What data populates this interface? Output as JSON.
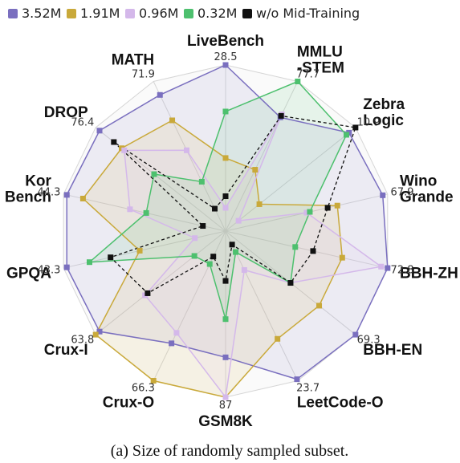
{
  "chart_data": {
    "type": "radar",
    "caption": "(a) Size of randomly sampled subset.",
    "axes": [
      "LiveBench",
      "MMLU-STEM",
      "Zebra Logic",
      "Wino Grande",
      "BBH-ZH",
      "BBH-EN",
      "LeetCode-O",
      "GSM8K",
      "Crux-O",
      "Crux-I",
      "GPQA",
      "Kor Bench",
      "DROP",
      "MATH"
    ],
    "axis_label_lines": [
      [
        "LiveBench"
      ],
      [
        "MMLU",
        "-STEM"
      ],
      [
        "Zebra",
        "Logic"
      ],
      [
        "Wino",
        "Grande"
      ],
      [
        "BBH-ZH"
      ],
      [
        "BBH-EN"
      ],
      [
        "LeetCode-O"
      ],
      [
        "GSM8K"
      ],
      [
        "Crux-O"
      ],
      [
        "Crux-I"
      ],
      [
        "GPQA"
      ],
      [
        "Kor",
        "Bench"
      ],
      [
        "DROP"
      ],
      [
        "MATH"
      ]
    ],
    "axis_max_labels": [
      "28.5",
      "77.7",
      "10.9",
      "67.9",
      "72.8",
      "69.3",
      "23.7",
      "87",
      "66.3",
      "63.8",
      "43.3",
      "44.3",
      "76.4",
      "71.9"
    ],
    "grid": true,
    "legend_position": "top",
    "series": [
      {
        "name": "3.52M",
        "color": "#7a6fbf",
        "fill": "#8a80c8",
        "marker": "square",
        "dash": false,
        "values": [
          1.0,
          0.76,
          0.95,
          0.97,
          1.0,
          1.0,
          0.99,
          0.76,
          0.75,
          0.97,
          0.98,
          0.98,
          0.97,
          0.91
        ]
      },
      {
        "name": "1.91M",
        "color": "#c9a93a",
        "fill": "#d4b84a",
        "marker": "square",
        "dash": false,
        "values": [
          0.44,
          0.41,
          0.26,
          0.69,
          0.72,
          0.72,
          0.72,
          1.0,
          1.0,
          1.0,
          0.53,
          0.88,
          0.8,
          0.74
        ]
      },
      {
        "name": "0.96M",
        "color": "#d4b8ea",
        "fill": "#dcc8f0",
        "marker": "square",
        "dash": false,
        "values": [
          0.14,
          0.78,
          0.1,
          0.5,
          0.96,
          0.5,
          0.26,
          1.0,
          0.68,
          0.62,
          0.19,
          0.59,
          0.78,
          0.54
        ]
      },
      {
        "name": "0.32M",
        "color": "#4dc06e",
        "fill": "#5ec87c",
        "marker": "square",
        "dash": false,
        "values": [
          0.72,
          1.0,
          0.93,
          0.52,
          0.43,
          0.5,
          0.14,
          0.53,
          0.22,
          0.24,
          0.84,
          0.49,
          0.55,
          0.33
        ]
      },
      {
        "name": "w/o Mid-Training",
        "color": "#111111",
        "fill": "none",
        "marker": "square",
        "dash": true,
        "values": [
          0.21,
          0.77,
          1.0,
          0.63,
          0.54,
          0.5,
          0.09,
          0.3,
          0.17,
          0.6,
          0.71,
          0.14,
          0.86,
          0.15
        ]
      }
    ]
  }
}
